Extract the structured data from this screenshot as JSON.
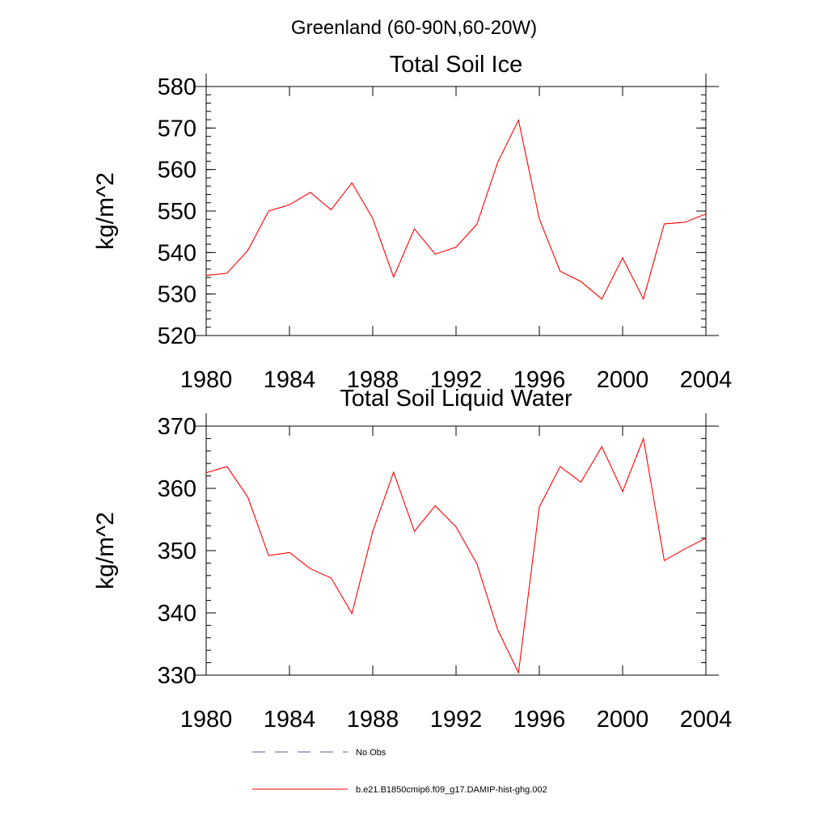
{
  "figure": {
    "suptitle": "Greenland (60-90N,60-20W)"
  },
  "chart_data": [
    {
      "type": "line",
      "title": "Total Soil Ice",
      "xlabel": "",
      "ylabel": "kg/m^2",
      "xlim": [
        1980,
        2004
      ],
      "ylim": [
        520,
        580
      ],
      "xticks": [
        1980,
        1984,
        1988,
        1992,
        1996,
        2000,
        2004
      ],
      "yticks": [
        520,
        530,
        540,
        550,
        560,
        570,
        580
      ],
      "grid": false,
      "series": [
        {
          "name": "b.e21.B1850cmip6.f09_g17.DAMIP-hist-ghg.002",
          "color": "#ff0000",
          "x": [
            1980,
            1981,
            1982,
            1983,
            1984,
            1985,
            1986,
            1987,
            1988,
            1989,
            1990,
            1991,
            1992,
            1993,
            1994,
            1995,
            1996,
            1997,
            1998,
            1999,
            2000,
            2001,
            2002,
            2003,
            2004
          ],
          "values": [
            534.5,
            535.0,
            540.5,
            550.0,
            551.5,
            554.5,
            550.3,
            556.8,
            548.2,
            534.1,
            545.7,
            539.6,
            541.3,
            546.8,
            561.7,
            571.9,
            548.1,
            535.5,
            533.0,
            528.8,
            538.7,
            528.8,
            546.9,
            547.3,
            549.3
          ]
        }
      ]
    },
    {
      "type": "line",
      "title": "Total Soil Liquid Water",
      "xlabel": "",
      "ylabel": "kg/m^2",
      "xlim": [
        1980,
        2004
      ],
      "ylim": [
        330,
        370
      ],
      "xticks": [
        1980,
        1984,
        1988,
        1992,
        1996,
        2000,
        2004
      ],
      "yticks": [
        330,
        340,
        350,
        360,
        370
      ],
      "grid": false,
      "series": [
        {
          "name": "b.e21.B1850cmip6.f09_g17.DAMIP-hist-ghg.002",
          "color": "#ff0000",
          "x": [
            1980,
            1981,
            1982,
            1983,
            1984,
            1985,
            1986,
            1987,
            1988,
            1989,
            1990,
            1991,
            1992,
            1993,
            1994,
            1995,
            1996,
            1997,
            1998,
            1999,
            2000,
            2001,
            2002,
            2003,
            2004
          ],
          "values": [
            362.5,
            363.5,
            358.6,
            349.2,
            349.7,
            347.1,
            345.6,
            339.9,
            353.1,
            362.6,
            353.1,
            357.2,
            353.8,
            347.9,
            337.3,
            330.4,
            357.0,
            363.5,
            361.0,
            366.7,
            359.5,
            368.0,
            348.4,
            350.3,
            352.0
          ]
        }
      ]
    }
  ],
  "legend": {
    "placement": "bottom-center",
    "entries": [
      {
        "label": "No Obs",
        "color": "#5a5a8c",
        "style": "dashed"
      },
      {
        "label": "b.e21.B1850cmip6.f09_g17.DAMIP-hist-ghg.002",
        "color": "#ff0000",
        "style": "solid"
      }
    ]
  }
}
